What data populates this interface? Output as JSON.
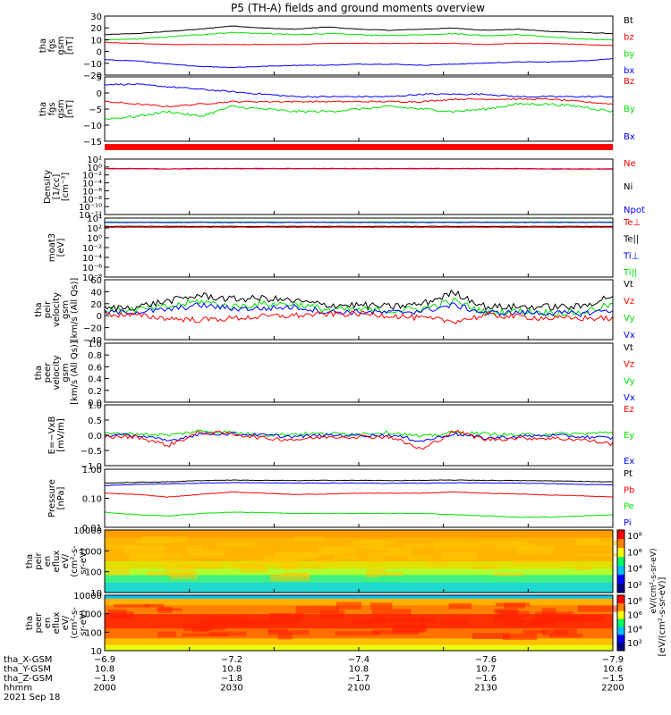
{
  "title": "P5 (TH-A) fields and ground moments overview",
  "colors": {
    "black": "#000000",
    "red": "#ff0000",
    "green": "#00e000",
    "blue": "#0000ff",
    "purple": "#7b00d0"
  },
  "chart_data": [
    {
      "type": "line",
      "ylabel": [
        "tha",
        "fgs",
        "gsm",
        "[nT]"
      ],
      "yticks": [
        "30",
        "20",
        "10",
        "0",
        "−10",
        "−20"
      ],
      "ylim": [
        -22,
        32
      ],
      "legend": [
        {
          "label": "Bt",
          "color": "#000000"
        },
        {
          "label": "bz",
          "color": "#ff0000"
        },
        {
          "label": "by",
          "color": "#00e000"
        },
        {
          "label": "bx",
          "color": "#0000ff"
        }
      ],
      "series": [
        {
          "color": "#000000",
          "noise": 0.25,
          "values": [
            15,
            16,
            18,
            20,
            23,
            21,
            20,
            22,
            20,
            19,
            20,
            21,
            19,
            20,
            18,
            17,
            16
          ]
        },
        {
          "color": "#00e000",
          "noise": 0.4,
          "values": [
            10,
            11,
            13,
            15,
            17,
            16,
            15,
            16,
            15,
            14,
            15,
            16,
            14,
            15,
            13,
            11,
            10
          ]
        },
        {
          "color": "#ff0000",
          "noise": 0.2,
          "values": [
            8,
            7,
            6,
            6,
            6,
            6,
            6,
            7,
            7,
            7,
            7,
            7,
            6,
            7,
            7,
            6,
            5
          ]
        },
        {
          "color": "#0000ff",
          "noise": 0.3,
          "values": [
            -8,
            -9,
            -12,
            -14,
            -15,
            -14,
            -13,
            -13,
            -12,
            -12,
            -13,
            -12,
            -11,
            -10,
            -10,
            -9,
            -7
          ]
        }
      ]
    },
    {
      "type": "line",
      "ylabel": [
        "tha",
        "fgs",
        "gsm",
        "[nT]"
      ],
      "yticks": [
        "5",
        "0",
        "−5",
        "−10",
        "−15"
      ],
      "ylim": [
        -18,
        8
      ],
      "legend": [
        {
          "label": "Bz",
          "color": "#ff0000"
        },
        {
          "label": "By",
          "color": "#00e000"
        },
        {
          "label": "Bx",
          "color": "#0000ff"
        }
      ],
      "series": [
        {
          "color": "#0000ff",
          "noise": 0.3,
          "values": [
            5,
            5,
            4,
            3,
            2,
            1,
            0,
            0,
            0,
            0,
            1,
            1,
            1,
            0,
            0,
            0,
            0
          ]
        },
        {
          "color": "#ff0000",
          "noise": 0.3,
          "values": [
            -2,
            -3,
            -4,
            -3,
            -2,
            -2,
            -2,
            -2,
            -2,
            -2,
            -2,
            -1,
            -1,
            -1,
            -1,
            -2,
            -3
          ]
        },
        {
          "color": "#00e000",
          "noise": 0.5,
          "values": [
            -9,
            -8,
            -6,
            -8,
            -4,
            -5,
            -6,
            -6,
            -5,
            -4,
            -5,
            -6,
            -5,
            -3,
            -3,
            -4,
            -6
          ]
        }
      ]
    },
    {
      "type": "line",
      "scale": "log",
      "ylabel": [
        "Density",
        "[1/cc]",
        "[cm⁻³]"
      ],
      "yticks": [
        "10²",
        "10⁰",
        "10⁻²",
        "10⁻⁴",
        "10⁻⁶",
        "10⁻⁸",
        "10⁻¹⁰",
        "10⁻¹²"
      ],
      "ylim": [
        -13,
        3
      ],
      "legend": [
        {
          "label": "Ne",
          "color": "#ff0000"
        },
        {
          "label": "Ni",
          "color": "#000000"
        },
        {
          "label": "Npot",
          "color": "#0000ff"
        }
      ],
      "series": [
        {
          "color": "#7b00d0",
          "noise": 0.05,
          "values": [
            0.3,
            0.3,
            0.2,
            0.3,
            0.3,
            0.3,
            0.3,
            0.3,
            0.3,
            0.3,
            0.3,
            0.3,
            0.3,
            0.3,
            0.2,
            0.2,
            0.2
          ]
        },
        {
          "color": "#ff0000",
          "noise": 0.05,
          "values": [
            0.2,
            0.2,
            0.1,
            0.2,
            0.2,
            0.2,
            0.2,
            0.2,
            0.2,
            0.2,
            0.2,
            0.2,
            0.2,
            0.2,
            0.1,
            0.1,
            0.1
          ]
        }
      ]
    },
    {
      "type": "line",
      "scale": "log",
      "ylabel": [
        "moat3",
        "[eV]"
      ],
      "yticks": [
        "10⁴",
        "10²",
        "10⁰",
        "10⁻²",
        "10⁻⁴",
        "10⁻⁶",
        "10⁻⁸"
      ],
      "ylim": [
        -9,
        4.5
      ],
      "legend": [
        {
          "label": "Te⊥",
          "color": "#ff0000"
        },
        {
          "label": "Te||",
          "color": "#000000"
        },
        {
          "label": "Ti⊥",
          "color": "#0000ff"
        },
        {
          "label": "Ti||",
          "color": "#00e000"
        }
      ],
      "series": [
        {
          "color": "#00e000",
          "noise": 0.05,
          "values": [
            3.6,
            3.6,
            3.6,
            3.6,
            3.6,
            3.6,
            3.6,
            3.6,
            3.6,
            3.6,
            3.6,
            3.6,
            3.6,
            3.6,
            3.6,
            3.6,
            3.6
          ]
        },
        {
          "color": "#0000ff",
          "noise": 0.05,
          "values": [
            3.5,
            3.5,
            3.5,
            3.5,
            3.5,
            3.5,
            3.5,
            3.5,
            3.5,
            3.5,
            3.5,
            3.5,
            3.5,
            3.5,
            3.5,
            3.5,
            3.5
          ]
        },
        {
          "color": "#000000",
          "noise": 0.05,
          "values": [
            2.6,
            2.6,
            2.6,
            2.6,
            2.6,
            2.6,
            2.6,
            2.6,
            2.6,
            2.6,
            2.6,
            2.6,
            2.6,
            2.6,
            2.6,
            2.6,
            2.6
          ]
        },
        {
          "color": "#ff0000",
          "noise": 0.05,
          "values": [
            2.4,
            2.4,
            2.4,
            2.4,
            2.4,
            2.4,
            2.4,
            2.4,
            2.4,
            2.4,
            2.4,
            2.4,
            2.4,
            2.4,
            2.4,
            2.4,
            2.4
          ]
        }
      ]
    },
    {
      "type": "line",
      "ylabel": [
        "tha",
        "peir",
        "velocity",
        "gsm",
        "[km/s (All Qs)]"
      ],
      "yticks": [
        "60",
        "40",
        "20",
        "0",
        "−20",
        "−40"
      ],
      "ylim": [
        -42,
        62
      ],
      "legend": [
        {
          "label": "Vt",
          "color": "#000000"
        },
        {
          "label": "Vz",
          "color": "#ff0000"
        },
        {
          "label": "Vy",
          "color": "#00e000"
        },
        {
          "label": "Vx",
          "color": "#0000ff"
        }
      ],
      "series": [
        {
          "color": "#00e000",
          "noise": 6,
          "values": [
            8,
            10,
            15,
            25,
            15,
            20,
            20,
            10,
            10,
            8,
            12,
            25,
            5,
            8,
            5,
            5,
            20
          ]
        },
        {
          "color": "#0000ff",
          "noise": 5,
          "values": [
            5,
            6,
            10,
            18,
            12,
            12,
            15,
            6,
            6,
            5,
            8,
            18,
            4,
            5,
            4,
            3,
            10
          ]
        },
        {
          "color": "#ff0000",
          "noise": 5,
          "values": [
            2,
            0,
            -5,
            -8,
            -5,
            -2,
            0,
            2,
            3,
            0,
            -5,
            -10,
            0,
            -2,
            -5,
            -5,
            -5
          ]
        },
        {
          "color": "#000000",
          "noise": 6,
          "values": [
            12,
            15,
            25,
            35,
            28,
            30,
            25,
            18,
            18,
            15,
            20,
            40,
            15,
            15,
            15,
            15,
            35
          ]
        }
      ]
    },
    {
      "type": "line",
      "ylabel": [
        "tha",
        "peer",
        "velocity",
        "gsm",
        "[km/s (All Qs)]"
      ],
      "yticks": [
        "1.0",
        "0.8",
        "0.6",
        "0.4",
        "0.2",
        "0.0"
      ],
      "ylim": [
        0,
        1
      ],
      "legend": [
        {
          "label": "Vt",
          "color": "#000000"
        },
        {
          "label": "Vz",
          "color": "#ff0000"
        },
        {
          "label": "Vy",
          "color": "#00e000"
        },
        {
          "label": "Vx",
          "color": "#0000ff"
        }
      ],
      "series": []
    },
    {
      "type": "line",
      "ylabel": [
        "E=−VxB",
        "[mV/m]"
      ],
      "yticks": [
        "1.0",
        "0.5",
        "0.0",
        "−0.5",
        "−1.0"
      ],
      "ylim": [
        -1.05,
        1.05
      ],
      "legend": [
        {
          "label": "Ez",
          "color": "#ff0000"
        },
        {
          "label": "Ey",
          "color": "#00e000"
        },
        {
          "label": "Ex",
          "color": "#0000ff"
        }
      ],
      "series": [
        {
          "color": "#00e000",
          "noise": 0.06,
          "values": [
            0.05,
            0.05,
            0.0,
            0.15,
            0.1,
            0.0,
            0.05,
            0.05,
            0.05,
            0.1,
            -0.05,
            0.1,
            0.05,
            0.0,
            0.05,
            0.05,
            0.1
          ]
        },
        {
          "color": "#0000ff",
          "noise": 0.06,
          "values": [
            0,
            0,
            -0.2,
            0.05,
            0.05,
            0,
            -0.05,
            0,
            0,
            0,
            -0.2,
            0.05,
            -0.1,
            -0.05,
            0,
            -0.05,
            -0.1
          ]
        },
        {
          "color": "#ff0000",
          "noise": 0.07,
          "values": [
            -0.05,
            -0.05,
            -0.35,
            0.1,
            0.05,
            -0.1,
            -0.15,
            -0.05,
            -0.05,
            -0.05,
            -0.5,
            0.15,
            -0.15,
            -0.1,
            -0.1,
            -0.15,
            -0.3
          ]
        }
      ]
    },
    {
      "type": "line",
      "scale": "log",
      "ylabel": [
        "Pressure",
        "[nPa]"
      ],
      "yticks": [
        "1.00",
        "0.10",
        "0.01"
      ],
      "ylim": [
        -2.2,
        0.1
      ],
      "legend": [
        {
          "label": "Pt",
          "color": "#000000"
        },
        {
          "label": "Pb",
          "color": "#ff0000"
        },
        {
          "label": "Pe",
          "color": "#00e000"
        },
        {
          "label": "Pi",
          "color": "#0000ff"
        }
      ],
      "series": [
        {
          "color": "#000000",
          "noise": 0.01,
          "values": [
            -0.45,
            -0.42,
            -0.4,
            -0.35,
            -0.33,
            -0.34,
            -0.35,
            -0.34,
            -0.34,
            -0.35,
            -0.34,
            -0.33,
            -0.34,
            -0.35,
            -0.36,
            -0.38,
            -0.4
          ]
        },
        {
          "color": "#0000ff",
          "noise": 0.01,
          "values": [
            -0.55,
            -0.5,
            -0.48,
            -0.45,
            -0.43,
            -0.44,
            -0.45,
            -0.45,
            -0.45,
            -0.46,
            -0.45,
            -0.44,
            -0.44,
            -0.45,
            -0.47,
            -0.5,
            -0.52
          ]
        },
        {
          "color": "#ff0000",
          "noise": 0.01,
          "values": [
            -0.85,
            -0.9,
            -1.0,
            -0.9,
            -0.8,
            -0.85,
            -0.9,
            -0.88,
            -0.85,
            -0.85,
            -0.85,
            -0.8,
            -0.85,
            -0.88,
            -0.92,
            -0.95,
            -1.0
          ]
        },
        {
          "color": "#00e000",
          "noise": 0.01,
          "values": [
            -1.6,
            -1.7,
            -1.75,
            -1.65,
            -1.6,
            -1.62,
            -1.65,
            -1.65,
            -1.65,
            -1.65,
            -1.65,
            -1.7,
            -1.75,
            -1.8,
            -1.8,
            -1.75,
            -1.7
          ]
        }
      ]
    },
    {
      "type": "heatmap",
      "ylabel": [
        "tha",
        "peir",
        "en",
        "eflux",
        "eV/",
        "(cm²-s-",
        "sr-eV)"
      ],
      "yticks": [
        "10000",
        "1000",
        "100",
        "10"
      ],
      "bands": [
        {
          "from": 0.0,
          "to": 0.12,
          "color": "#ff9d00"
        },
        {
          "from": 0.12,
          "to": 0.5,
          "color": "#ffb400"
        },
        {
          "from": 0.5,
          "to": 0.62,
          "color": "#e0e000"
        },
        {
          "from": 0.62,
          "to": 0.72,
          "color": "#b0ff30"
        },
        {
          "from": 0.72,
          "to": 0.84,
          "color": "#40f080"
        },
        {
          "from": 0.84,
          "to": 1.0,
          "color": "#20d8d0"
        }
      ]
    },
    {
      "type": "heatmap",
      "ylabel": [
        "tha",
        "peer",
        "en",
        "eflux",
        "eV/",
        "(cm²-s-",
        "sr-eV)"
      ],
      "yticks": [
        "10000",
        "1000",
        "100",
        "10"
      ],
      "bands": [
        {
          "from": 0.0,
          "to": 0.06,
          "color": "#00c8ff"
        },
        {
          "from": 0.06,
          "to": 0.18,
          "color": "#ffb000"
        },
        {
          "from": 0.18,
          "to": 0.34,
          "color": "#ff8000"
        },
        {
          "from": 0.34,
          "to": 0.6,
          "color": "#ff3000"
        },
        {
          "from": 0.6,
          "to": 0.78,
          "color": "#ff7000"
        },
        {
          "from": 0.78,
          "to": 0.9,
          "color": "#ffc000"
        },
        {
          "from": 0.9,
          "to": 1.0,
          "color": "#e8ff10"
        }
      ]
    }
  ],
  "colorbar": {
    "label": "[eV/(cm²-s-sr-eV)]",
    "label2": "eV/(cm²-s-sr-eV)",
    "ticks_upper": [
      "10⁸",
      "10⁶",
      "10⁴",
      "10²"
    ],
    "ticks_lower": [
      "10⁸",
      "10⁶",
      "10⁴",
      "10²"
    ]
  },
  "time_axis": {
    "rows": [
      {
        "label": "tha_X-GSM",
        "values": [
          "−6.9",
          "−7.2",
          "−7.4",
          "−7.6",
          "−7.9"
        ]
      },
      {
        "label": "tha_Y-GSM",
        "values": [
          "10.8",
          "10.8",
          "10.8",
          "10.7",
          "10.6"
        ]
      },
      {
        "label": "tha_Z-GSM",
        "values": [
          "−1.9",
          "−1.8",
          "−1.7",
          "−1.6",
          "−1.5"
        ]
      },
      {
        "label": "hhmm",
        "values": [
          "2000",
          "2030",
          "2100",
          "2130",
          "2200"
        ]
      }
    ],
    "date": "2021 Sep 18"
  }
}
